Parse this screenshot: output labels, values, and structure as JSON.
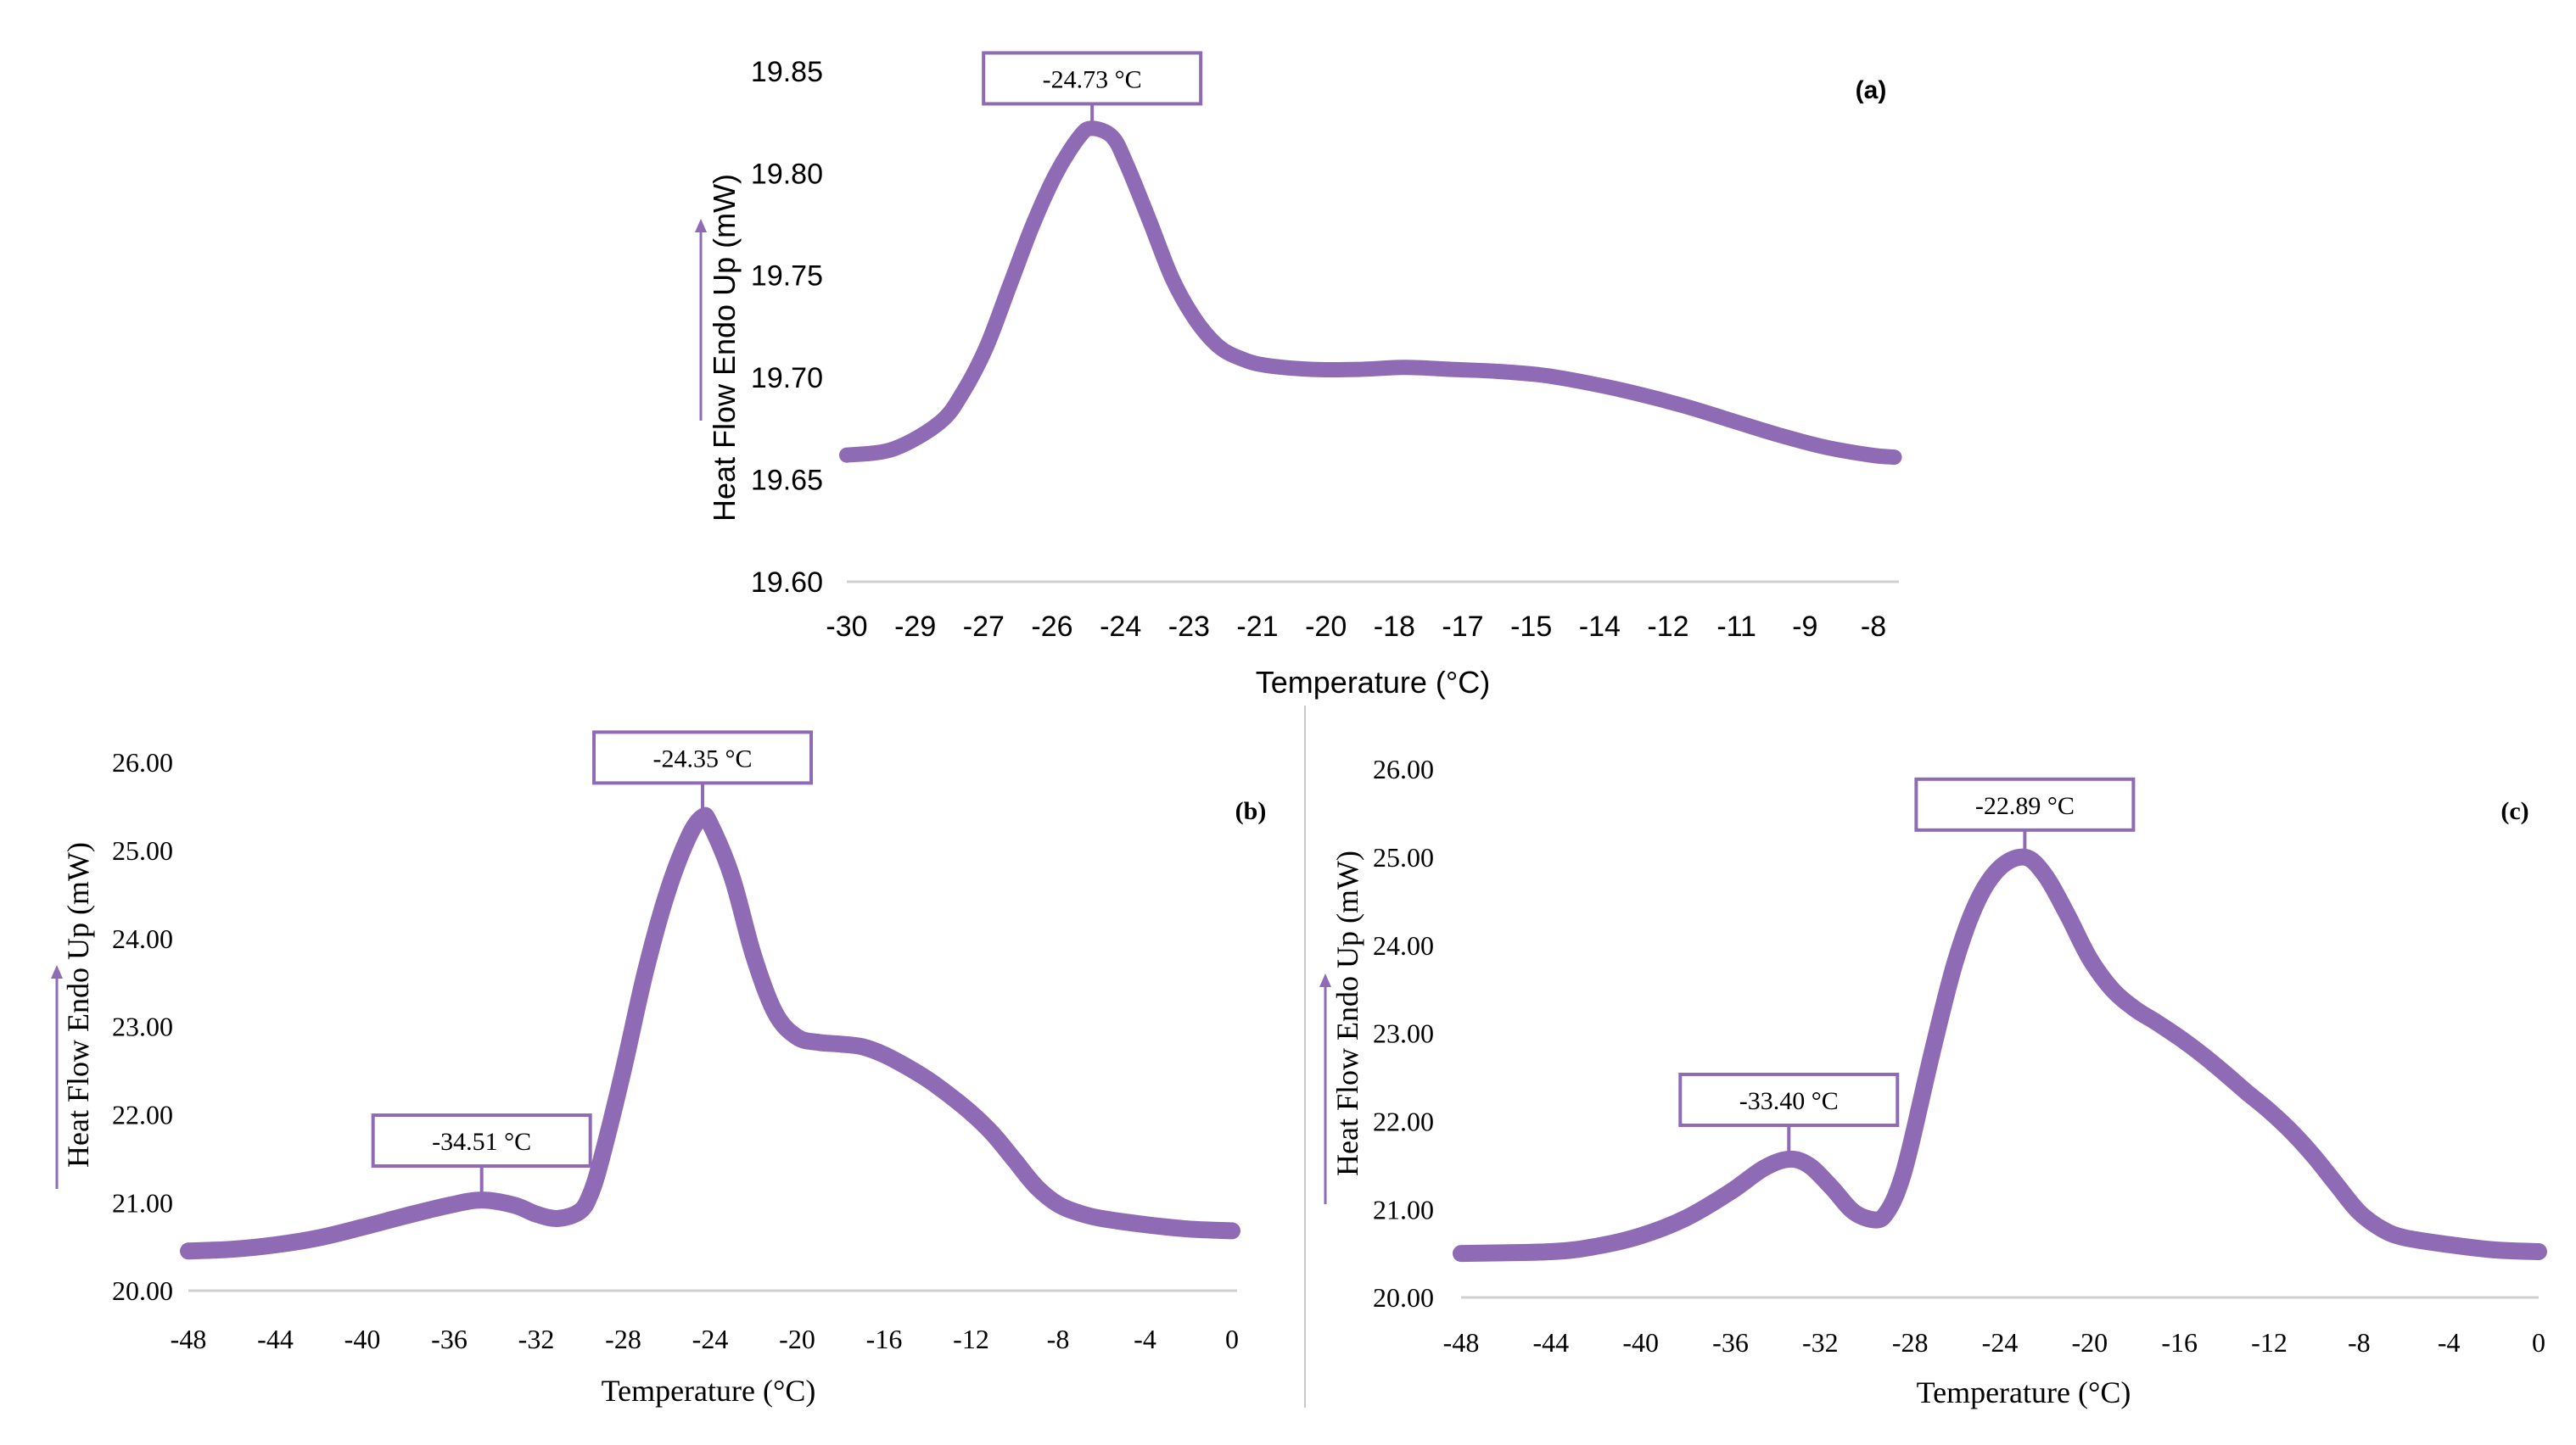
{
  "figure": {
    "accent_color": "#8e6bb4",
    "divider_color": "#c8c8c8"
  },
  "chart_data": [
    {
      "panel": "(a)",
      "type": "line",
      "title": "",
      "xlabel": "Temperature (°C)",
      "ylabel": "Heat Flow Endo Up (mW)",
      "xlim": [
        -30,
        -7.4
      ],
      "ylim": [
        19.6,
        19.85
      ],
      "x_ticks": [
        -30,
        -29,
        -27,
        -26,
        -24,
        -23,
        -21,
        -20,
        -18,
        -17,
        -15,
        -14,
        -12,
        -11,
        -9,
        -8
      ],
      "y_ticks": [
        "19.60",
        "19.65",
        "19.70",
        "19.75",
        "19.80",
        "19.85"
      ],
      "series": [
        {
          "name": "(a)",
          "color": "#8e6bb4",
          "points": [
            [
              -30.0,
              19.662
            ],
            [
              -29.0,
              19.665
            ],
            [
              -28.0,
              19.678
            ],
            [
              -27.5,
              19.693
            ],
            [
              -27.0,
              19.715
            ],
            [
              -26.5,
              19.745
            ],
            [
              -26.0,
              19.775
            ],
            [
              -25.5,
              19.8
            ],
            [
              -25.0,
              19.818
            ],
            [
              -24.73,
              19.822
            ],
            [
              -24.3,
              19.818
            ],
            [
              -24.0,
              19.805
            ],
            [
              -23.5,
              19.777
            ],
            [
              -23.0,
              19.748
            ],
            [
              -22.5,
              19.728
            ],
            [
              -22.0,
              19.715
            ],
            [
              -21.5,
              19.709
            ],
            [
              -21.0,
              19.706
            ],
            [
              -20.0,
              19.704
            ],
            [
              -19.0,
              19.704
            ],
            [
              -18.0,
              19.705
            ],
            [
              -17.0,
              19.704
            ],
            [
              -16.0,
              19.703
            ],
            [
              -15.0,
              19.701
            ],
            [
              -14.0,
              19.697
            ],
            [
              -13.0,
              19.692
            ],
            [
              -12.0,
              19.686
            ],
            [
              -11.0,
              19.679
            ],
            [
              -10.0,
              19.672
            ],
            [
              -9.0,
              19.666
            ],
            [
              -8.0,
              19.662
            ],
            [
              -7.5,
              19.661
            ]
          ]
        }
      ],
      "annotations": [
        {
          "label": "-24.73 °C",
          "x": -24.73,
          "y": 19.822
        }
      ]
    },
    {
      "panel": "(b)",
      "type": "line",
      "title": "",
      "xlabel": "Temperature (°C)",
      "ylabel": "Heat Flow Endo Up (mW)",
      "xlim": [
        -48,
        0
      ],
      "ylim": [
        20.0,
        26.0
      ],
      "x_ticks": [
        -48,
        -44,
        -40,
        -36,
        -32,
        -28,
        -24,
        -20,
        -16,
        -12,
        -8,
        -4,
        0
      ],
      "y_ticks": [
        "20.00",
        "21.00",
        "22.00",
        "23.00",
        "24.00",
        "25.00",
        "26.00"
      ],
      "series": [
        {
          "name": "(b)",
          "color": "#8e6bb4",
          "points": [
            [
              -48.0,
              20.45
            ],
            [
              -46.0,
              20.47
            ],
            [
              -44.0,
              20.52
            ],
            [
              -42.0,
              20.6
            ],
            [
              -40.0,
              20.72
            ],
            [
              -38.0,
              20.85
            ],
            [
              -36.0,
              20.97
            ],
            [
              -34.51,
              21.03
            ],
            [
              -33.0,
              20.97
            ],
            [
              -32.0,
              20.87
            ],
            [
              -31.0,
              20.82
            ],
            [
              -30.0,
              20.9
            ],
            [
              -29.5,
              21.1
            ],
            [
              -29.0,
              21.5
            ],
            [
              -28.0,
              22.5
            ],
            [
              -27.0,
              23.6
            ],
            [
              -26.0,
              24.5
            ],
            [
              -25.0,
              25.15
            ],
            [
              -24.35,
              25.38
            ],
            [
              -24.0,
              25.3
            ],
            [
              -23.0,
              24.7
            ],
            [
              -22.0,
              23.8
            ],
            [
              -21.0,
              23.15
            ],
            [
              -20.0,
              22.88
            ],
            [
              -19.0,
              22.82
            ],
            [
              -18.0,
              22.8
            ],
            [
              -17.0,
              22.77
            ],
            [
              -16.0,
              22.68
            ],
            [
              -15.0,
              22.55
            ],
            [
              -14.0,
              22.4
            ],
            [
              -13.0,
              22.22
            ],
            [
              -12.0,
              22.02
            ],
            [
              -11.0,
              21.78
            ],
            [
              -10.0,
              21.48
            ],
            [
              -9.0,
              21.18
            ],
            [
              -8.0,
              20.98
            ],
            [
              -7.0,
              20.88
            ],
            [
              -6.0,
              20.82
            ],
            [
              -4.0,
              20.75
            ],
            [
              -2.0,
              20.7
            ],
            [
              0.0,
              20.68
            ]
          ]
        }
      ],
      "annotations": [
        {
          "label": "-24.35 °C",
          "x": -24.35,
          "y": 25.38
        },
        {
          "label": "-34.51 °C",
          "x": -34.51,
          "y": 21.03
        }
      ]
    },
    {
      "panel": "(c)",
      "type": "line",
      "title": "",
      "xlabel": "Temperature (°C)",
      "ylabel": "Heat Flow Endo Up (mW)",
      "xlim": [
        -48,
        0
      ],
      "ylim": [
        20.0,
        26.0
      ],
      "x_ticks": [
        -48,
        -44,
        -40,
        -36,
        -32,
        -28,
        -24,
        -20,
        -16,
        -12,
        -8,
        -4,
        0
      ],
      "y_ticks": [
        "20.00",
        "21.00",
        "22.00",
        "23.00",
        "24.00",
        "25.00",
        "26.00"
      ],
      "series": [
        {
          "name": "(c)",
          "color": "#8e6bb4",
          "points": [
            [
              -48.0,
              20.5
            ],
            [
              -44.0,
              20.52
            ],
            [
              -42.0,
              20.58
            ],
            [
              -40.0,
              20.7
            ],
            [
              -38.0,
              20.9
            ],
            [
              -36.0,
              21.2
            ],
            [
              -34.5,
              21.47
            ],
            [
              -33.4,
              21.57
            ],
            [
              -32.5,
              21.5
            ],
            [
              -31.5,
              21.25
            ],
            [
              -30.5,
              20.97
            ],
            [
              -29.5,
              20.88
            ],
            [
              -29.0,
              20.98
            ],
            [
              -28.5,
              21.25
            ],
            [
              -28.0,
              21.7
            ],
            [
              -27.0,
              22.8
            ],
            [
              -26.0,
              23.8
            ],
            [
              -25.0,
              24.5
            ],
            [
              -24.0,
              24.88
            ],
            [
              -22.89,
              25.0
            ],
            [
              -22.0,
              24.8
            ],
            [
              -21.0,
              24.35
            ],
            [
              -20.0,
              23.85
            ],
            [
              -19.0,
              23.5
            ],
            [
              -18.0,
              23.28
            ],
            [
              -17.0,
              23.12
            ],
            [
              -16.0,
              22.95
            ],
            [
              -15.0,
              22.76
            ],
            [
              -14.0,
              22.55
            ],
            [
              -13.0,
              22.33
            ],
            [
              -12.0,
              22.12
            ],
            [
              -11.0,
              21.88
            ],
            [
              -10.0,
              21.6
            ],
            [
              -9.0,
              21.28
            ],
            [
              -8.0,
              20.97
            ],
            [
              -7.0,
              20.78
            ],
            [
              -6.0,
              20.68
            ],
            [
              -4.0,
              20.6
            ],
            [
              -2.0,
              20.54
            ],
            [
              0.0,
              20.52
            ]
          ]
        }
      ],
      "annotations": [
        {
          "label": "-22.89 °C",
          "x": -22.89,
          "y": 25.0
        },
        {
          "label": "-33.40 °C",
          "x": -33.4,
          "y": 21.57
        }
      ]
    }
  ]
}
